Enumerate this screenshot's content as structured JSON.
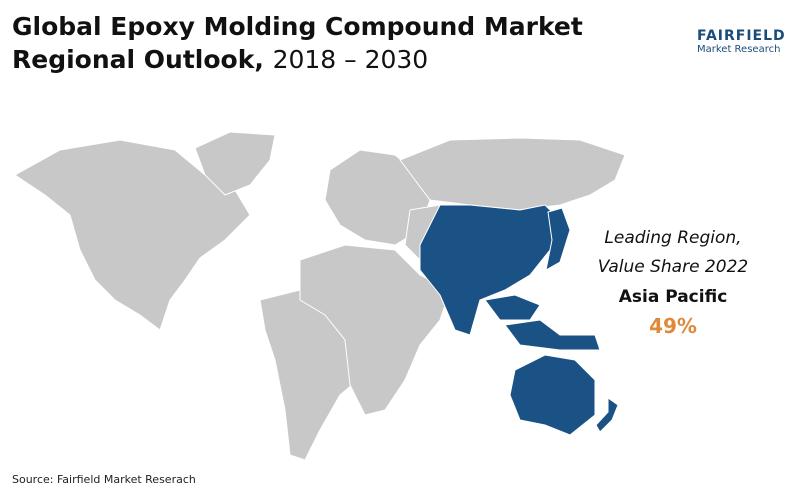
{
  "header": {
    "title_line1": "Global Epoxy Molding Compound Market",
    "title_line2": "Regional Outlook,",
    "period": "2018 – 2030"
  },
  "logo": {
    "name": "FAIRFIELD",
    "tagline": "Market Research"
  },
  "callout": {
    "label_line1": "Leading Region,",
    "label_line2": "Value Share 2022",
    "region": "Asia Pacific",
    "share": "49%"
  },
  "footer": {
    "source": "Source: Fairfield Market Reserach"
  }
}
